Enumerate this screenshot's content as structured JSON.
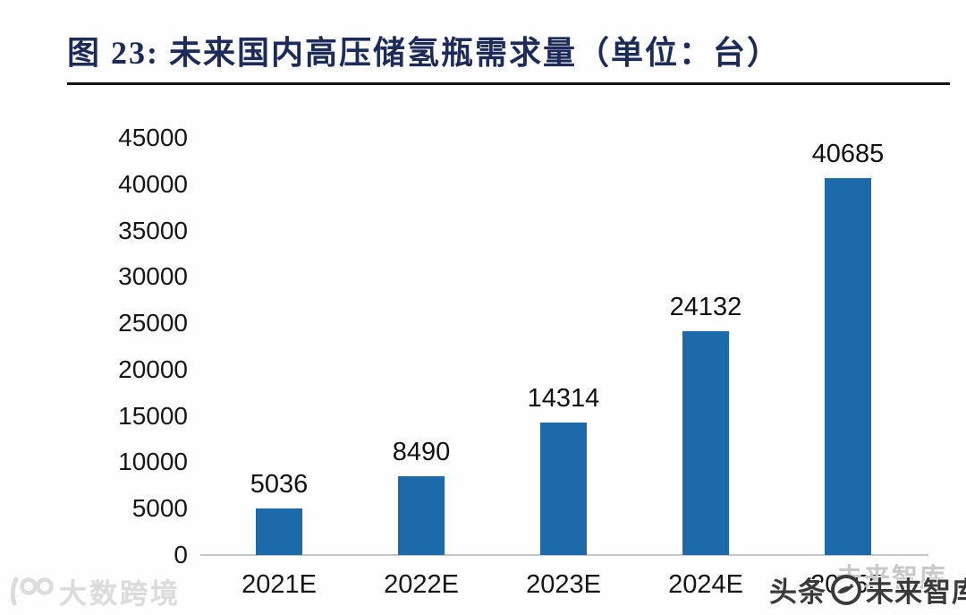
{
  "title": {
    "text": "图 23: 未来国内高压储氢瓶需求量（单位：台）"
  },
  "colors": {
    "bar": "#1c6aaa",
    "title_navy": "#1c2b57",
    "axis_gray": "#c6c6c6",
    "title_rule": "#141414",
    "watermark_dark": "#3a3a3a",
    "watermark_light": "#d6d6d6"
  },
  "chart_data": {
    "type": "bar",
    "title": "图 23: 未来国内高压储氢瓶需求量（单位：台）",
    "unit": "台",
    "categories": [
      "2021E",
      "2022E",
      "2023E",
      "2024E",
      "2025E"
    ],
    "values": [
      5036,
      8490,
      14314,
      24132,
      40685
    ],
    "data_labels": [
      "5036",
      "8490",
      "14314",
      "24132",
      "40685"
    ],
    "xlabel": "",
    "ylabel": "",
    "ylim": [
      0,
      45000
    ],
    "yticks": [
      0,
      5000,
      10000,
      15000,
      20000,
      25000,
      30000,
      35000,
      40000,
      45000
    ],
    "grid": false,
    "legend": null,
    "bar_color": "#1c6aaa",
    "note_last_category_hidden_by_watermark": true
  },
  "watermarks": {
    "bottom_left": {
      "logo": "biglobal-logo",
      "text": "大数跨境"
    },
    "bottom_right_back": {
      "text": "未来智库"
    },
    "bottom_right": {
      "prefix": "头条",
      "logo": "bird-logo",
      "suffix": "未来智库"
    }
  }
}
